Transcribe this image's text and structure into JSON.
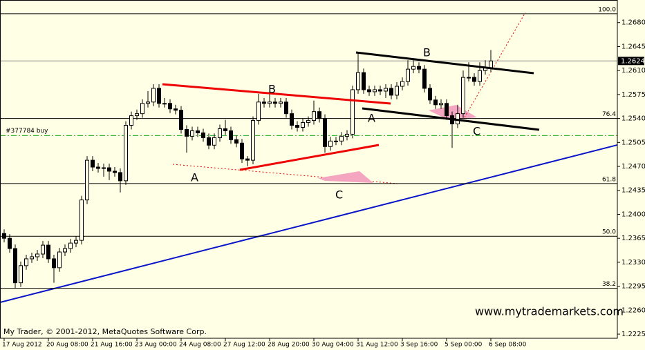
{
  "chart_data": {
    "type": "candlestick",
    "up_color": "#ffffe6",
    "down_color": "#000000",
    "ylim": [
      1.2219,
      1.2713
    ],
    "yticks": [
      {
        "value": 1.268,
        "label": "1.2680"
      },
      1.2645,
      {
        "value": 1.261,
        "label": "1.2610"
      },
      1.2575,
      {
        "value": 1.254,
        "label": "1.2540"
      },
      1.2505,
      {
        "value": 1.247,
        "label": "1.2470"
      },
      1.2435,
      {
        "value": 1.24,
        "label": "1.2400"
      },
      1.2365,
      {
        "value": 1.233,
        "label": "1.2330"
      },
      1.2295,
      {
        "value": 1.226,
        "label": "1.2260"
      },
      1.2225
    ],
    "categories": [
      "17 Aug 2012",
      null,
      null,
      null,
      null,
      null,
      null,
      null,
      "20 Aug 08:00",
      null,
      null,
      null,
      null,
      null,
      null,
      null,
      "21 Aug 16:00",
      null,
      null,
      null,
      null,
      null,
      null,
      null,
      "23 Aug 00:00",
      null,
      null,
      null,
      null,
      null,
      null,
      null,
      "24 Aug 08:00",
      null,
      null,
      null,
      null,
      null,
      null,
      null,
      "27 Aug 12:00",
      null,
      null,
      null,
      null,
      null,
      null,
      null,
      "28 Aug 20:00",
      null,
      null,
      null,
      null,
      null,
      null,
      null,
      "30 Aug 04:00",
      null,
      null,
      null,
      null,
      null,
      null,
      null,
      "31 Aug 12:00",
      null,
      null,
      null,
      null,
      null,
      null,
      null,
      "3 Sep 16:00",
      null,
      null,
      null,
      null,
      null,
      null,
      null,
      "5 Sep 00:00",
      null,
      null,
      null,
      null,
      null,
      null,
      null,
      "6 Sep 08:00"
    ],
    "open": [
      1.2372,
      1.2365,
      1.235,
      1.23,
      1.2325,
      1.2335,
      1.2338,
      1.2342,
      1.2355,
      1.2335,
      1.2322,
      1.2345,
      1.235,
      1.2358,
      1.2362,
      1.2421,
      1.2479,
      1.2469,
      1.2467,
      1.2468,
      1.2463,
      1.2461,
      1.2449,
      1.253,
      1.2544,
      1.2547,
      1.2562,
      1.2564,
      1.2584,
      1.2562,
      1.2562,
      1.2554,
      1.2552,
      1.2524,
      1.2514,
      1.2522,
      1.2519,
      1.2512,
      1.2501,
      1.2512,
      1.2525,
      1.2522,
      1.2509,
      1.2504,
      1.2481,
      1.2479,
      1.2537,
      1.2564,
      1.2562,
      1.2564,
      1.2562,
      1.2564,
      1.2547,
      1.253,
      1.2527,
      1.2534,
      1.2537,
      1.255,
      1.254,
      1.2499,
      1.2507,
      1.2507,
      1.2514,
      1.2517,
      1.2582,
      1.2607,
      1.2582,
      1.2579,
      1.2582,
      1.258,
      1.2584,
      1.2574,
      1.2587,
      1.2594,
      1.2612,
      1.2616,
      1.2612,
      1.2584,
      1.2567,
      1.256,
      1.2562,
      1.2544,
      1.2532,
      1.2547,
      1.26,
      1.26,
      1.2594,
      1.261,
      1.2614
    ],
    "high": [
      1.2378,
      1.2371,
      1.2356,
      1.2331,
      1.2341,
      1.2344,
      1.2348,
      1.2361,
      1.2361,
      1.2341,
      1.2351,
      1.2356,
      1.2364,
      1.2368,
      1.2427,
      1.2485,
      1.2485,
      1.2475,
      1.2474,
      1.2474,
      1.2469,
      1.2467,
      1.2536,
      1.255,
      1.2553,
      1.2568,
      1.258,
      1.259,
      1.259,
      1.257,
      1.2568,
      1.256,
      1.2558,
      1.253,
      1.2528,
      1.2528,
      1.2525,
      1.2518,
      1.2518,
      1.2531,
      1.2538,
      1.2528,
      1.2515,
      1.251,
      1.2485,
      1.2543,
      1.2576,
      1.257,
      1.2578,
      1.257,
      1.257,
      1.257,
      1.2553,
      1.2536,
      1.254,
      1.2543,
      1.2566,
      1.2556,
      1.2546,
      1.2513,
      1.2513,
      1.252,
      1.2523,
      1.2588,
      1.2636,
      1.2613,
      1.2588,
      1.2588,
      1.2588,
      1.259,
      1.259,
      1.2593,
      1.26,
      1.2625,
      1.2625,
      1.2622,
      1.2618,
      1.259,
      1.2573,
      1.2568,
      1.2568,
      1.255,
      1.256,
      1.261,
      1.2622,
      1.2606,
      1.2622,
      1.2625,
      1.264
    ],
    "low": [
      1.2359,
      1.2344,
      1.2292,
      1.2294,
      1.2319,
      1.2329,
      1.2332,
      1.2336,
      1.2329,
      1.23,
      1.2316,
      1.2339,
      1.2344,
      1.2352,
      1.2356,
      1.2415,
      1.2463,
      1.2461,
      1.2455,
      1.245,
      1.2455,
      1.2432,
      1.2443,
      1.2524,
      1.2538,
      1.2541,
      1.2556,
      1.2558,
      1.2556,
      1.2556,
      1.2548,
      1.2546,
      1.2518,
      1.249,
      1.2508,
      1.2513,
      1.2506,
      1.2495,
      1.2495,
      1.2506,
      1.2516,
      1.2503,
      1.2498,
      1.2475,
      1.247,
      1.2473,
      1.2531,
      1.2556,
      1.2556,
      1.2556,
      1.2556,
      1.2541,
      1.2524,
      1.2521,
      1.2521,
      1.2528,
      1.2531,
      1.2534,
      1.249,
      1.2493,
      1.2501,
      1.2501,
      1.2508,
      1.2511,
      1.2576,
      1.2576,
      1.2573,
      1.2573,
      1.2574,
      1.257,
      1.2568,
      1.2568,
      1.2581,
      1.2588,
      1.2606,
      1.2606,
      1.2578,
      1.2561,
      1.2554,
      1.2554,
      1.2538,
      1.2497,
      1.2526,
      1.2541,
      1.2594,
      1.2588,
      1.2588,
      1.2604,
      1.2608
    ],
    "close": [
      1.2365,
      1.235,
      1.23,
      1.2325,
      1.2335,
      1.2338,
      1.2342,
      1.2355,
      1.2335,
      1.2322,
      1.2345,
      1.235,
      1.2358,
      1.2362,
      1.2421,
      1.2479,
      1.2469,
      1.2467,
      1.2468,
      1.2463,
      1.2461,
      1.2449,
      1.253,
      1.2544,
      1.2547,
      1.2562,
      1.2564,
      1.2584,
      1.2562,
      1.2562,
      1.2554,
      1.2552,
      1.2524,
      1.2514,
      1.2522,
      1.2519,
      1.2512,
      1.2501,
      1.2512,
      1.2525,
      1.2522,
      1.2509,
      1.2504,
      1.2481,
      1.2479,
      1.2537,
      1.2564,
      1.2562,
      1.2564,
      1.2562,
      1.2564,
      1.2547,
      1.253,
      1.2527,
      1.2534,
      1.2537,
      1.255,
      1.254,
      1.2499,
      1.2507,
      1.2507,
      1.2514,
      1.2517,
      1.2582,
      1.2607,
      1.2582,
      1.2579,
      1.2582,
      1.258,
      1.2584,
      1.2574,
      1.2587,
      1.2594,
      1.2612,
      1.2616,
      1.2612,
      1.2584,
      1.2567,
      1.256,
      1.2562,
      1.2544,
      1.2532,
      1.2547,
      1.26,
      1.26,
      1.2594,
      1.261,
      1.2614,
      1.2624
    ],
    "fib_levels": [
      {
        "label": "100.0",
        "price": 1.2693
      },
      {
        "label": "76.4",
        "price": 1.254
      },
      {
        "label": "61.8",
        "price": 1.2445
      },
      {
        "label": "50.0",
        "price": 1.2368
      },
      {
        "label": "38.2",
        "price": 1.2292
      }
    ],
    "last_price": 1.2624,
    "order": {
      "label": "#377784 buy",
      "price": 1.2515
    },
    "annotations": [
      "B",
      "A",
      "B",
      "C",
      "A",
      "C"
    ],
    "watermark": "www.mytrademarkets.com",
    "copyright": "My Trader, © 2001-2012, MetaQuotes Software Corp."
  }
}
